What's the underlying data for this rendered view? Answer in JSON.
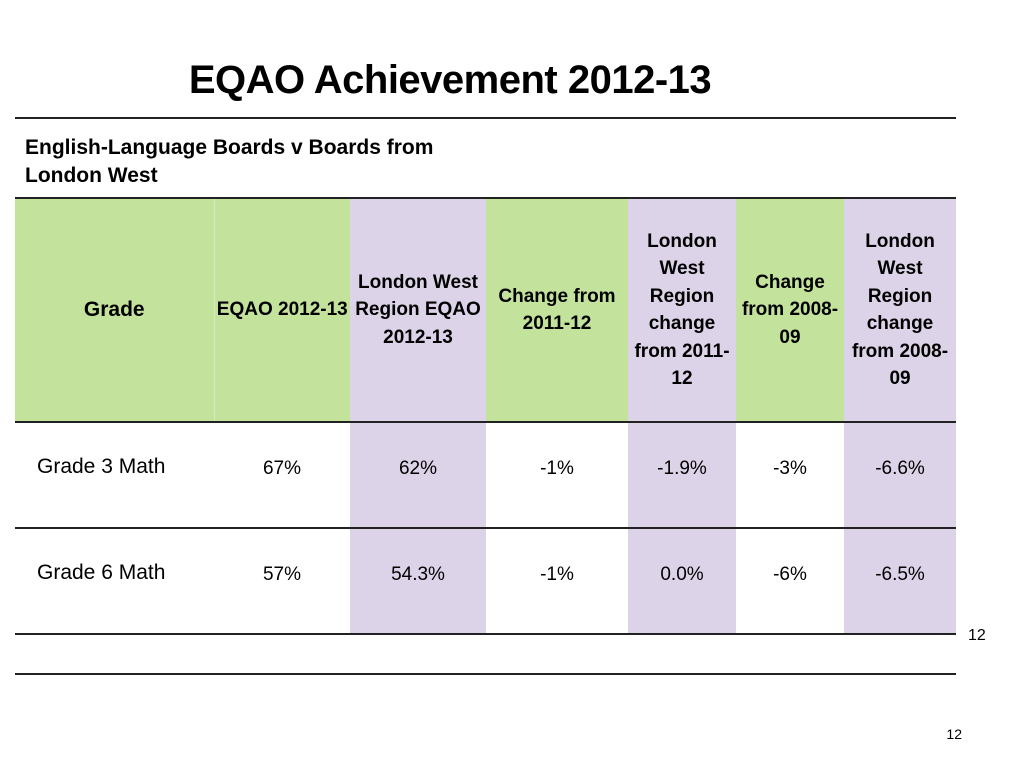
{
  "slide": {
    "title": "EQAO Achievement 2012-13",
    "caption": "English-Language Boards v Boards from London West",
    "side_number": "12",
    "slide_number": "12"
  },
  "table": {
    "headers": [
      "Grade",
      "EQAO 2012-13",
      "London West Region EQAO 2012-13",
      "Change from 2011-12",
      "London West Region change from 2011-12",
      "Change from 2008-09",
      "London West Region change from 2008-09"
    ],
    "rows": [
      [
        "Grade 3 Math",
        "67%",
        "62%",
        "-1%",
        "-1.9%",
        "-3%",
        "-6.6%"
      ],
      [
        "Grade 6 Math",
        "57%",
        "54.3%",
        "-1%",
        "0.0%",
        "-6%",
        "-6.5%"
      ]
    ]
  },
  "colors": {
    "green_header": "#c3e29b",
    "purple_column": "#dcd3e8",
    "rule": "#222222"
  }
}
